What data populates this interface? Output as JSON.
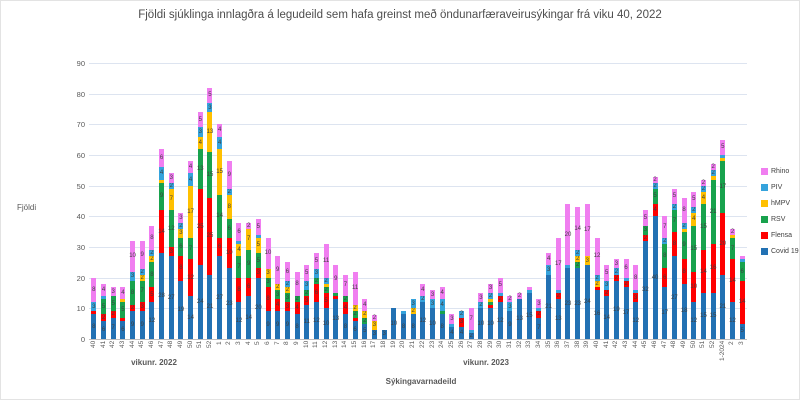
{
  "title": "Fjöldi sjúklinga innlagðra á legudeild sem hafa greinst með öndunarfæraveirusýkingar frá viku 40, 2022",
  "y_axis": {
    "label": "Fjöldi",
    "ticks": [
      0,
      10,
      20,
      30,
      40,
      50,
      60,
      70,
      80,
      90
    ]
  },
  "x_axis": {
    "title": "Sýkingavarnadeild",
    "group_labels": [
      "vikunr. 2022",
      "vikunr. 2023"
    ]
  },
  "chart_data": {
    "type": "bar",
    "stacked": true,
    "grid": true,
    "legend_position": "right",
    "ylim": [
      0,
      90
    ],
    "categories": [
      "40",
      "41",
      "42",
      "43",
      "44",
      "45",
      "46",
      "47",
      "48",
      "49",
      "50",
      "51",
      "52",
      "1",
      "2",
      "3",
      "4",
      "5",
      "6",
      "7",
      "8",
      "9",
      "10",
      "11",
      "12",
      "13",
      "14",
      "15",
      "16",
      "17",
      "18",
      "19",
      "20",
      "21",
      "22",
      "23",
      "24",
      "25",
      "26",
      "27",
      "28",
      "29",
      "30",
      "31",
      "32",
      "33",
      "34",
      "35",
      "36",
      "37",
      "38",
      "39",
      "40",
      "41",
      "42",
      "43",
      "44",
      "45",
      "46",
      "47",
      "48",
      "49",
      "50",
      "51",
      "52",
      "1-2024",
      "2",
      "3"
    ],
    "series": [
      {
        "name": "Covid 19",
        "color": "#2271B3",
        "values": [
          8,
          6,
          7,
          6,
          9,
          9,
          12,
          28,
          27,
          19,
          14,
          24,
          21,
          27,
          23,
          12,
          14,
          20,
          9,
          9,
          9,
          8,
          11,
          12,
          10,
          13,
          8,
          6,
          5,
          3,
          3,
          10,
          8,
          8,
          12,
          10,
          8,
          4,
          4,
          2,
          10,
          10,
          12,
          9,
          13,
          15,
          7,
          21,
          13,
          23,
          23,
          24,
          16,
          14,
          19,
          17,
          12,
          32,
          40,
          17,
          27,
          18,
          12,
          15,
          15,
          21,
          12,
          5
        ]
      },
      {
        "name": "Flensa",
        "color": "#FF0000",
        "values": [
          1,
          2,
          2,
          1,
          2,
          3,
          5,
          14,
          3,
          8,
          12,
          25,
          25,
          6,
          10,
          8,
          6,
          3,
          8,
          4,
          3,
          4,
          3,
          6,
          5,
          1,
          4,
          1,
          0,
          0,
          0,
          0,
          0,
          0,
          0,
          0,
          0,
          0,
          3,
          0,
          0,
          1,
          2,
          0,
          0,
          0,
          2,
          0,
          2,
          0,
          0,
          0,
          1,
          2,
          2,
          2,
          3,
          2,
          4,
          6,
          8,
          8,
          10,
          14,
          16,
          20,
          14,
          14
        ]
      },
      {
        "name": "RSV",
        "color": "#18A24D",
        "values": [
          0,
          5,
          5,
          5,
          8,
          7,
          8,
          9,
          12,
          6,
          7,
          13,
          15,
          14,
          6,
          7,
          9,
          5,
          3,
          3,
          3,
          2,
          2,
          2,
          2,
          1,
          2,
          2,
          2,
          0,
          0,
          0,
          0,
          0,
          0,
          0,
          1,
          0,
          0,
          0,
          0,
          1,
          0,
          0,
          0,
          0,
          0,
          0,
          0,
          0,
          2,
          0,
          0,
          0,
          0,
          0,
          0,
          3,
          5,
          8,
          7,
          9,
          15,
          15,
          21,
          17,
          7,
          6
        ]
      },
      {
        "name": "hMPV",
        "color": "#FFC000",
        "values": [
          0,
          0,
          0,
          1,
          0,
          2,
          2,
          1,
          7,
          3,
          17,
          4,
          13,
          15,
          8,
          4,
          7,
          5,
          3,
          2,
          2,
          0,
          0,
          0,
          1,
          0,
          0,
          2,
          2,
          3,
          0,
          0,
          0,
          2,
          0,
          0,
          0,
          0,
          0,
          0,
          0,
          1,
          0,
          0,
          0,
          0,
          0,
          0,
          0,
          0,
          2,
          3,
          2,
          0,
          0,
          0,
          0,
          0,
          0,
          0,
          0,
          1,
          4,
          4,
          1,
          1,
          1,
          0
        ]
      },
      {
        "name": "PIV",
        "color": "#35A3DC",
        "values": [
          3,
          1,
          0,
          0,
          3,
          2,
          2,
          4,
          2,
          2,
          4,
          3,
          3,
          4,
          2,
          1,
          0,
          1,
          0,
          0,
          2,
          0,
          3,
          3,
          2,
          0,
          0,
          0,
          0,
          0,
          0,
          0,
          1,
          3,
          2,
          3,
          4,
          1,
          2,
          1,
          2,
          2,
          1,
          3,
          0,
          1,
          1,
          3,
          1,
          1,
          2,
          0,
          2,
          3,
          2,
          1,
          1,
          0,
          2,
          2,
          2,
          2,
          2,
          2,
          2,
          1,
          0,
          1
        ]
      },
      {
        "name": "Rhino",
        "color": "#F07EF0",
        "values": [
          8,
          4,
          3,
          4,
          10,
          9,
          8,
          6,
          3,
          3,
          4,
          5,
          5,
          4,
          9,
          6,
          2,
          5,
          10,
          9,
          6,
          8,
          5,
          5,
          11,
          9,
          7,
          11,
          4,
          2,
          0,
          0,
          0,
          0,
          4,
          3,
          4,
          3,
          0,
          7,
          3,
          3,
          5,
          2,
          2,
          1,
          3,
          4,
          17,
          20,
          14,
          17,
          12,
          5,
          3,
          6,
          8,
          5,
          2,
          7,
          5,
          8,
          5,
          2,
          2,
          5,
          2,
          1
        ]
      }
    ]
  }
}
